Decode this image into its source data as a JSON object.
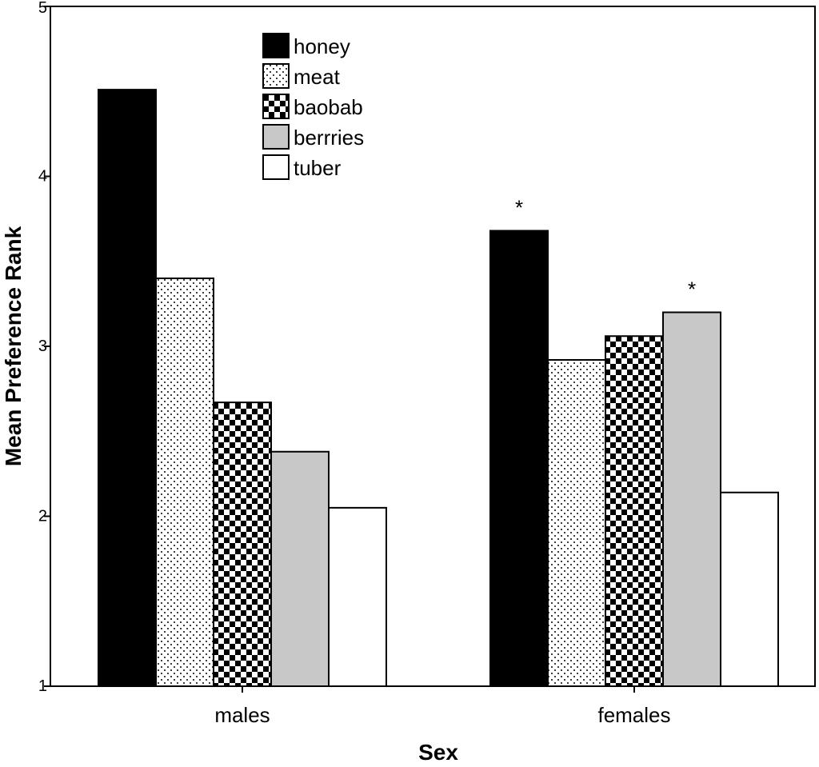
{
  "chart_data": {
    "type": "bar",
    "title": "",
    "xlabel": "Sex",
    "ylabel": "Mean Preference Rank",
    "ylim": [
      1,
      5
    ],
    "yticks": [
      "1",
      "2",
      "3",
      "4",
      "5"
    ],
    "categories": [
      "males",
      "females"
    ],
    "grid": false,
    "legend_position": "top-left",
    "series": [
      {
        "name": "honey",
        "values": [
          4.51,
          3.68
        ],
        "pattern": "solid-black"
      },
      {
        "name": "meat",
        "values": [
          3.4,
          2.92
        ],
        "pattern": "dots"
      },
      {
        "name": "baobab",
        "values": [
          2.67,
          3.06
        ],
        "pattern": "checker"
      },
      {
        "name": "berrries",
        "values": [
          2.38,
          3.2
        ],
        "pattern": "solid-gray"
      },
      {
        "name": "tuber",
        "values": [
          2.05,
          2.14
        ],
        "pattern": "solid-white"
      }
    ],
    "annotations": [
      {
        "text": "*",
        "category": "females",
        "series": "honey"
      },
      {
        "text": "*",
        "category": "females",
        "series": "berrries"
      }
    ]
  },
  "colors": {
    "honey": "#000000",
    "berries_gray": "#c8c8c8",
    "axis": "#000000",
    "background": "#ffffff"
  }
}
